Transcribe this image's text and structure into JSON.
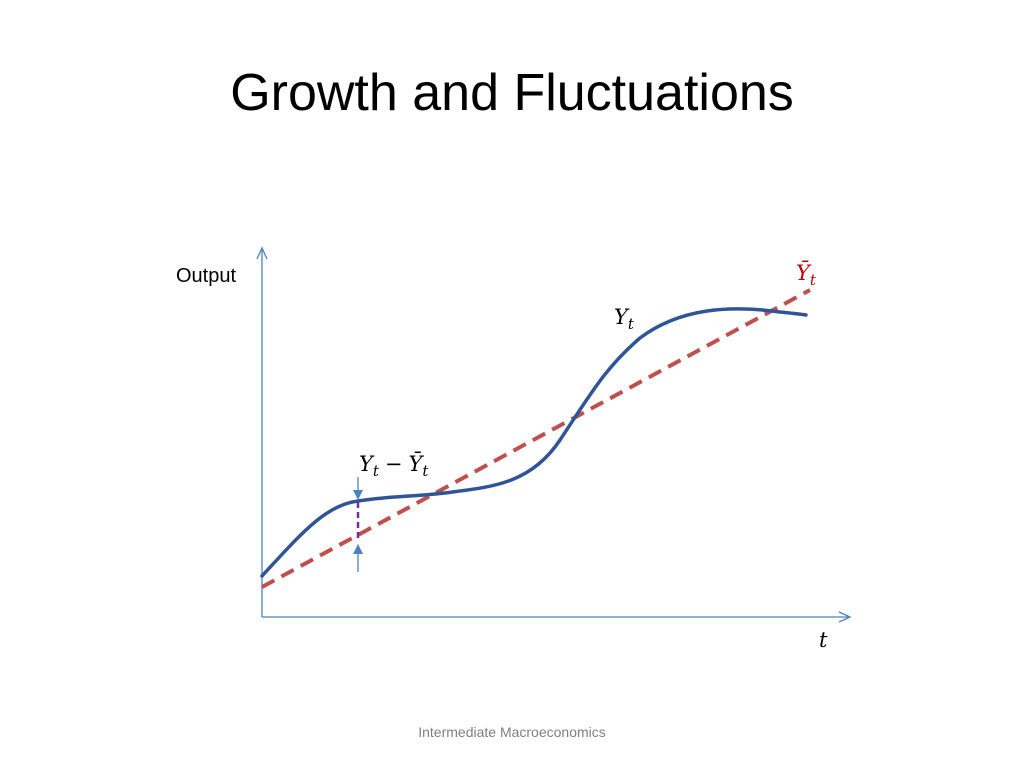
{
  "slide": {
    "title": "Growth and Fluctuations",
    "footer": "Intermediate Macroeconomics"
  },
  "diagram": {
    "y_axis_label": "Output",
    "x_axis_label": "t",
    "actual_output_label": {
      "base": "Y",
      "sub": "t"
    },
    "trend_output_label": {
      "base": "Ȳ",
      "sub": "t"
    },
    "gap_label": {
      "left_base": "Y",
      "left_sub": "t",
      "operator": "−",
      "right_base": "Ȳ",
      "right_sub": "t"
    }
  },
  "colors": {
    "axis": "#4f81bd",
    "actual_output": "#2f5597",
    "trend_output": "#c0504d",
    "trend_label": "#c00000",
    "gap_marker": "#7030a0",
    "gap_arrow": "#4f81bd",
    "footer_text": "#7f7f7f"
  }
}
